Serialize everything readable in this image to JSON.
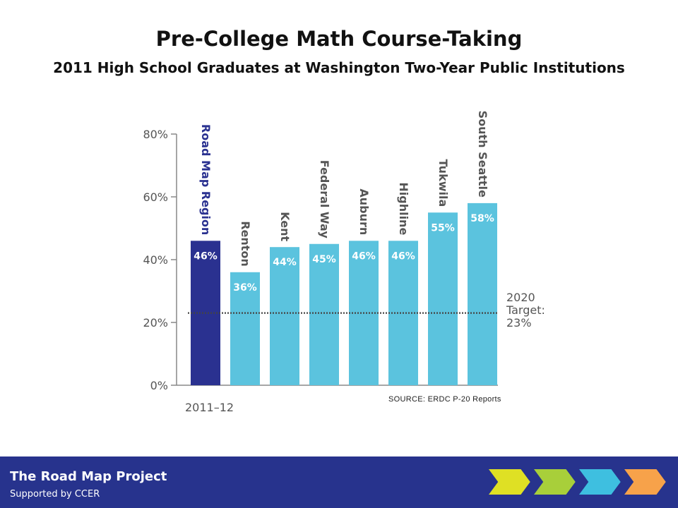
{
  "header": {
    "title": "Pre-College Math Course-Taking",
    "subtitle": "2011 High School Graduates at Washington Two-Year Public Institutions"
  },
  "chart_data": {
    "type": "bar",
    "categories": [
      "Road Map Region",
      "Renton",
      "Kent",
      "Federal Way",
      "Auburn",
      "Highline",
      "Tukwila",
      "South Seattle"
    ],
    "values": [
      46,
      36,
      44,
      45,
      46,
      46,
      55,
      58
    ],
    "value_labels": [
      "46%",
      "36%",
      "44%",
      "45%",
      "46%",
      "46%",
      "55%",
      "58%"
    ],
    "ylim": [
      0,
      80
    ],
    "yticks": [
      "0%",
      "20%",
      "40%",
      "60%",
      "80%"
    ],
    "x_group_label": "2011–12",
    "target": {
      "value": 23,
      "label_lines": [
        "2020",
        "Target:",
        "23%"
      ]
    },
    "colors": {
      "region": "#2a3190",
      "district": "#5bc3de",
      "axis": "#888888",
      "text": "#555555"
    },
    "grid": false
  },
  "source": "SOURCE: ERDC P-20 Reports",
  "footer": {
    "title": "The Road Map Project",
    "subtitle": "Supported by CCER",
    "background": "#27338d",
    "chevron_colors": [
      "#dfe024",
      "#a8cf3a",
      "#3ebfe0",
      "#f7a24a"
    ]
  }
}
